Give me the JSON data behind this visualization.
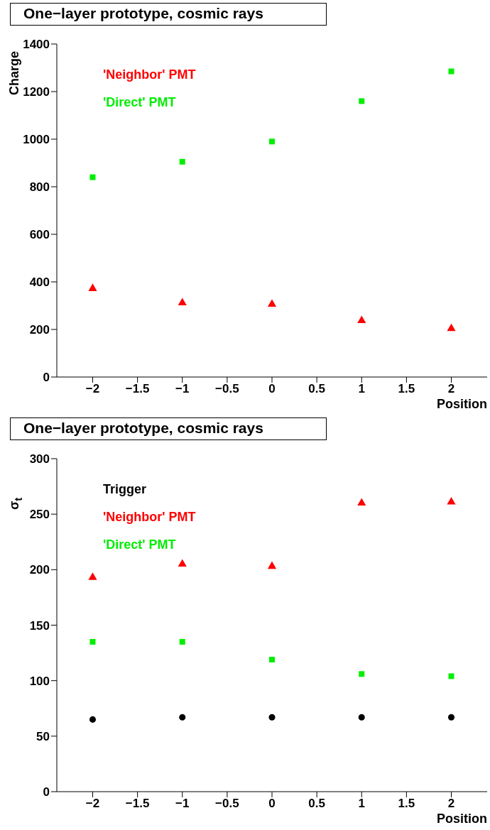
{
  "chart_data": [
    {
      "type": "scatter",
      "title": "One−layer prototype, cosmic rays",
      "xlabel": "Position",
      "ylabel": "Charge",
      "x": [
        -2,
        -1,
        0,
        1,
        2
      ],
      "xlim": [
        -2.4,
        2.4
      ],
      "xticks": [
        {
          "value": -2,
          "label": "−2"
        },
        {
          "value": -1.5,
          "label": "−1.5"
        },
        {
          "value": -1,
          "label": "−1"
        },
        {
          "value": -0.5,
          "label": "−0.5"
        },
        0,
        0.5,
        1,
        1.5,
        2
      ],
      "ylim": [
        0,
        1400
      ],
      "yticks": [
        0,
        200,
        400,
        600,
        800,
        1000,
        1200,
        1400
      ],
      "grid": false,
      "legend": "top left",
      "series": [
        {
          "name": "'Neighbor' PMT",
          "color": "#ff0000",
          "marker": "triangle",
          "values": [
            372,
            312,
            306,
            237,
            204
          ]
        },
        {
          "name": "'Direct' PMT",
          "color": "#00ee00",
          "marker": "square",
          "values": [
            840,
            905,
            990,
            1160,
            1285
          ]
        }
      ]
    },
    {
      "type": "scatter",
      "title": "One−layer prototype, cosmic rays",
      "xlabel": "Position",
      "ylabel": "σ$_{t}$",
      "x": [
        -2,
        -1,
        0,
        1,
        2
      ],
      "xlim": [
        -2.4,
        2.4
      ],
      "xticks": [
        {
          "value": -2,
          "label": "−2"
        },
        {
          "value": -1.5,
          "label": "−1.5"
        },
        {
          "value": -1,
          "label": "−1"
        },
        {
          "value": -0.5,
          "label": "−0.5"
        },
        0,
        0.5,
        1,
        1.5,
        2
      ],
      "ylim": [
        0,
        300
      ],
      "yticks": [
        0,
        50,
        100,
        150,
        200,
        250,
        300
      ],
      "grid": false,
      "legend": "top left",
      "series": [
        {
          "name": "Trigger",
          "color": "#000000",
          "marker": "circle",
          "values": [
            65,
            67,
            67,
            67,
            67
          ]
        },
        {
          "name": "'Neighbor' PMT",
          "color": "#ff0000",
          "marker": "triangle",
          "values": [
            193,
            205,
            203,
            260,
            261
          ]
        },
        {
          "name": "'Direct' PMT",
          "color": "#00ee00",
          "marker": "square",
          "values": [
            135,
            135,
            119,
            106,
            104
          ]
        }
      ]
    }
  ]
}
